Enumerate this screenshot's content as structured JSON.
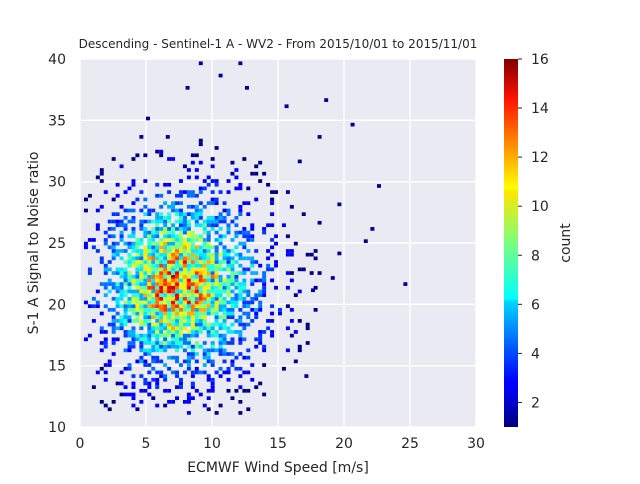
{
  "chart_data": {
    "type": "heatmap",
    "title": "Descending - Sentinel-1 A - WV2 - From 2015/10/01 to 2015/11/01",
    "xlabel": "ECMWF Wind Speed [m/s]",
    "ylabel": "S-1 A Signal to Noise ratio",
    "xlim": [
      0,
      30
    ],
    "ylim": [
      10,
      40
    ],
    "x_ticks": [
      0,
      5,
      10,
      15,
      20,
      25,
      30
    ],
    "y_ticks": [
      10,
      15,
      20,
      25,
      30,
      35,
      40
    ],
    "grid": true,
    "colormap": "jet",
    "colorbar": {
      "label": "count",
      "min": 1,
      "max": 16,
      "ticks": [
        2,
        4,
        6,
        8,
        10,
        12,
        14,
        16
      ]
    },
    "bins": {
      "x_bin_width": 0.3,
      "y_bin_width": 0.3
    },
    "density_model": {
      "center_x": 7.0,
      "center_y": 21.5,
      "spread_x": 3.3,
      "spread_y": 4.2,
      "peak_count": 14
    },
    "outliers": [
      [
        24.5,
        21.5
      ],
      [
        22.5,
        29.5
      ],
      [
        22.0,
        26.0
      ],
      [
        21.5,
        25.0
      ],
      [
        20.5,
        34.5
      ],
      [
        19.5,
        28.0
      ],
      [
        19.5,
        24.0
      ],
      [
        19.0,
        22.0
      ],
      [
        18.5,
        36.5
      ],
      [
        18.0,
        26.5
      ],
      [
        17.5,
        21.0
      ],
      [
        18.0,
        33.5
      ],
      [
        16.5,
        31.5
      ],
      [
        15.5,
        36.0
      ],
      [
        10.5,
        38.5
      ],
      [
        9.0,
        39.5
      ],
      [
        12.0,
        39.5
      ],
      [
        12.5,
        37.5
      ],
      [
        8.0,
        37.5
      ],
      [
        5.0,
        35.0
      ],
      [
        4.5,
        33.5
      ],
      [
        6.5,
        33.5
      ],
      [
        1.5,
        30.5
      ],
      [
        17.0,
        14.0
      ]
    ],
    "colors": {
      "background": "#eaeaf2",
      "grid": "#ffffff",
      "text": "#262626"
    }
  }
}
